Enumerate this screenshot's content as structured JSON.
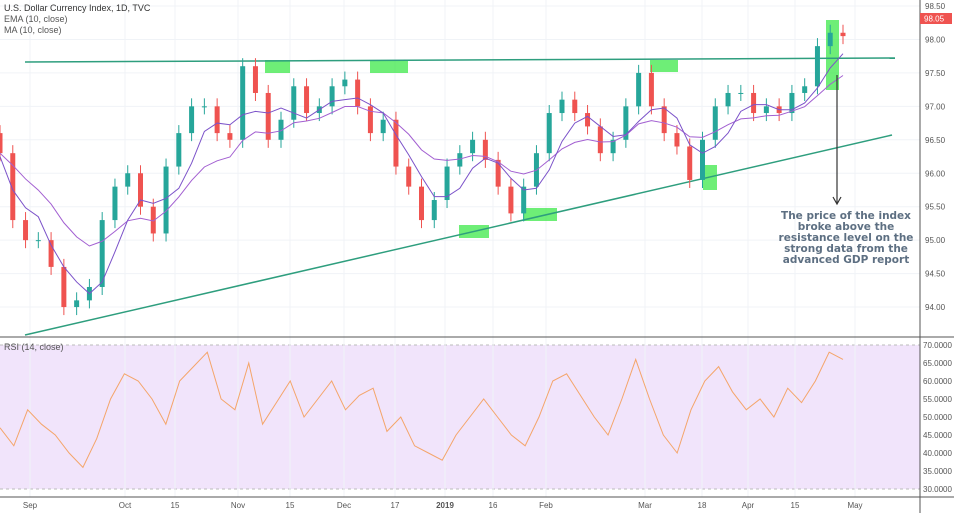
{
  "legend": {
    "title": "U.S. Dollar Currency Index, 1D, TVC",
    "ema": "EMA (10, close)",
    "ma": "MA (10, close)",
    "rsi": "RSI (14, close)"
  },
  "annotation": "The price of the index broke above the resistance level on the strong data from the advanced GDP report",
  "last_price": "98.05",
  "colors": {
    "up": "#26a69a",
    "down": "#ef5350",
    "ema": "#a25fd1",
    "ma": "#7b52c9",
    "trend": "#2e9e7e",
    "highlight": "#3ee84a",
    "rsi": "#f4a56a",
    "rsi_band": "#f1e4fb"
  },
  "chart_data": {
    "type": "candlestick",
    "title": "U.S. Dollar Currency Index, 1D, TVC",
    "price_axis": {
      "ylim": [
        93.6,
        98.6
      ],
      "ticks": [
        "98.50",
        "98.00",
        "97.50",
        "97.00",
        "96.50",
        "96.00",
        "95.50",
        "95.00",
        "94.50",
        "94.00"
      ]
    },
    "rsi_axis": {
      "ylim": [
        28,
        72
      ],
      "ticks": [
        "70.0000",
        "65.0000",
        "60.0000",
        "55.0000",
        "50.0000",
        "45.0000",
        "40.0000",
        "35.0000",
        "30.0000"
      ]
    },
    "x_ticks": [
      "Sep",
      "Oct",
      "15",
      "Nov",
      "15",
      "Dec",
      "17",
      "2019",
      "16",
      "Feb",
      "Mar",
      "18",
      "Apr",
      "15",
      "May"
    ],
    "close": [
      96.3,
      95.3,
      95.0,
      95.0,
      94.6,
      94.0,
      94.1,
      94.3,
      95.3,
      95.8,
      96.0,
      95.5,
      95.1,
      96.1,
      96.6,
      97.0,
      97.0,
      96.6,
      96.5,
      97.6,
      97.2,
      96.5,
      96.8,
      97.3,
      96.9,
      97.0,
      97.3,
      97.4,
      97.0,
      96.6,
      96.8,
      96.1,
      95.8,
      95.3,
      95.6,
      96.1,
      96.3,
      96.5,
      96.2,
      95.8,
      95.4,
      95.8,
      96.3,
      96.9,
      97.1,
      96.9,
      96.7,
      96.3,
      96.5,
      97.0,
      97.5,
      97.0,
      96.6,
      96.4,
      95.9,
      96.5,
      97.0,
      97.2,
      97.2,
      96.9,
      97.0,
      96.9,
      97.2,
      97.3,
      97.9,
      98.1,
      98.05
    ],
    "rsi": [
      47,
      42,
      52,
      48,
      45,
      40,
      36,
      44,
      55,
      62,
      60,
      55,
      48,
      60,
      64,
      68,
      55,
      52,
      65,
      48,
      54,
      60,
      50,
      55,
      60,
      52,
      56,
      58,
      46,
      50,
      42,
      40,
      38,
      45,
      50,
      55,
      50,
      45,
      42,
      50,
      60,
      62,
      56,
      50,
      45,
      55,
      66,
      55,
      45,
      40,
      52,
      60,
      64,
      57,
      52,
      55,
      50,
      58,
      54,
      60,
      68,
      66
    ]
  }
}
